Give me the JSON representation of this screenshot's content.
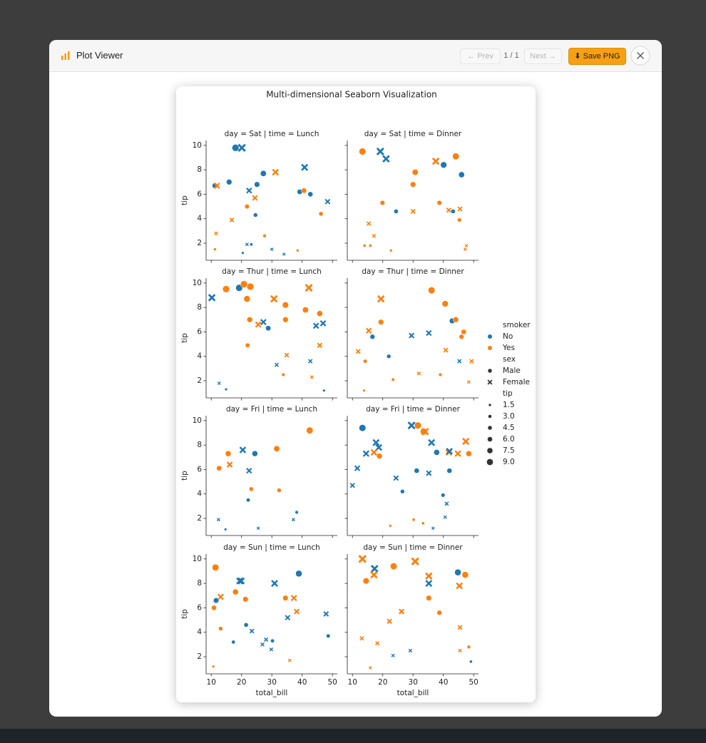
{
  "ui": {
    "app_title": "Plot Viewer",
    "prev": "← Prev",
    "page": "1 / 1",
    "next": "Next →",
    "save": "⬇ Save PNG"
  },
  "figure": {
    "title": "Multi-dimensional Seaborn Visualization",
    "legend": {
      "hue_title": "smoker",
      "hue": [
        {
          "name": "No",
          "color": "#1f77b4"
        },
        {
          "name": "Yes",
          "color": "#ff7f0e"
        }
      ],
      "style_title": "sex",
      "style": [
        {
          "name": "Male",
          "marker": "o"
        },
        {
          "name": "Female",
          "marker": "x"
        }
      ],
      "size_title": "tip",
      "sizes": [
        1.5,
        {
          "value": 3,
          "label": "3.0"
        },
        4.5,
        {
          "value": 6,
          "label": "6.0"
        },
        7.5,
        {
          "value": 9,
          "label": "9.0"
        }
      ]
    }
  },
  "chart_data": [
    {
      "type": "scatter",
      "title": "day = Sat | time = Lunch",
      "ylabel": "tip",
      "xlim": [
        8.3,
        51.6
      ],
      "ylim": [
        0.6,
        10.4
      ],
      "xticks": [
        10,
        20,
        30,
        40,
        50
      ],
      "yticks": [
        2,
        4,
        6,
        8,
        10
      ],
      "x": [
        11.2,
        11.9,
        15.9,
        18.0,
        20.1,
        27.2,
        25.1,
        22.5,
        31.2,
        40.8,
        39.2,
        40.6,
        42.7,
        48.4,
        24.4,
        21.8,
        24.6,
        16.8,
        46.2,
        11.6,
        27.6,
        21.8,
        23.2,
        11.2,
        30.0,
        20.4,
        34.0,
        38.5
      ],
      "values": [
        6.7,
        6.7,
        7.0,
        9.8,
        9.8,
        7.7,
        6.8,
        6.3,
        7.8,
        8.2,
        6.2,
        6.3,
        6.0,
        5.4,
        5.7,
        5.0,
        4.3,
        3.9,
        4.4,
        2.8,
        2.6,
        1.9,
        1.9,
        1.5,
        1.5,
        1.2,
        1.1,
        1.4
      ],
      "smoker": [
        "No",
        "Yes",
        "No",
        "No",
        "No",
        "No",
        "No",
        "No",
        "Yes",
        "No",
        "No",
        "Yes",
        "No",
        "No",
        "Yes",
        "Yes",
        "No",
        "Yes",
        "Yes",
        "Yes",
        "Yes",
        "No",
        "No",
        "Yes",
        "No",
        "No",
        "No",
        "Yes"
      ],
      "sex": [
        "Male",
        "Female",
        "Male",
        "Male",
        "Female",
        "Male",
        "Male",
        "Female",
        "Female",
        "Female",
        "Male",
        "Male",
        "Male",
        "Female",
        "Female",
        "Male",
        "Male",
        "Female",
        "Male",
        "Female",
        "Male",
        "Female",
        "Male",
        "Male",
        "Female",
        "Male",
        "Female",
        "Male"
      ]
    },
    {
      "type": "scatter",
      "title": "day = Sat | time = Dinner",
      "xlim": [
        8.3,
        51.6
      ],
      "ylim": [
        0.6,
        10.4
      ],
      "xticks": [
        10,
        20,
        30,
        40,
        50
      ],
      "yticks": [
        2,
        4,
        6,
        8,
        10
      ],
      "x": [
        13.3,
        19.2,
        21.1,
        37.5,
        44.1,
        40.1,
        46.0,
        30.7,
        30.0,
        19.9,
        24.4,
        30.0,
        38.7,
        41.8,
        43.2,
        45.5,
        45.3,
        15.4,
        17.1,
        14.0,
        15.9,
        22.7,
        47.6,
        47.2
      ],
      "values": [
        9.5,
        9.5,
        8.9,
        8.7,
        9.1,
        8.4,
        7.6,
        7.8,
        6.8,
        5.3,
        4.6,
        4.6,
        5.3,
        4.7,
        4.6,
        4.8,
        3.9,
        3.6,
        2.6,
        1.8,
        1.8,
        1.4,
        1.8,
        1.5
      ],
      "smoker": [
        "Yes",
        "No",
        "No",
        "Yes",
        "Yes",
        "No",
        "No",
        "Yes",
        "Yes",
        "Yes",
        "No",
        "Yes",
        "Yes",
        "Yes",
        "No",
        "Yes",
        "Yes",
        "Yes",
        "Yes",
        "Yes",
        "Yes",
        "Yes",
        "Yes",
        "Yes"
      ],
      "sex": [
        "Male",
        "Female",
        "Female",
        "Female",
        "Male",
        "Male",
        "Male",
        "Male",
        "Male",
        "Male",
        "Male",
        "Female",
        "Male",
        "Female",
        "Male",
        "Female",
        "Male",
        "Female",
        "Female",
        "Male",
        "Male",
        "Male",
        "Female",
        "Female"
      ]
    },
    {
      "type": "scatter",
      "title": "day = Thur | time = Lunch",
      "ylabel": "tip",
      "xlim": [
        8.3,
        51.6
      ],
      "ylim": [
        0.6,
        10.4
      ],
      "xticks": [
        10,
        20,
        30,
        40,
        50
      ],
      "yticks": [
        2,
        4,
        6,
        8,
        10
      ],
      "x": [
        10.2,
        14.9,
        19.2,
        20.8,
        22.9,
        21.8,
        30.7,
        42.2,
        34.5,
        41.1,
        45.8,
        22.7,
        27.2,
        34.5,
        25.5,
        28.8,
        44.6,
        46.9,
        22.0,
        45.8,
        34.9,
        42.7,
        31.6,
        33.8,
        43.2,
        12.6,
        14.9,
        47.2
      ],
      "values": [
        8.8,
        9.5,
        9.6,
        9.9,
        9.7,
        8.7,
        8.7,
        9.6,
        8.2,
        7.8,
        7.5,
        7.0,
        6.8,
        7.0,
        6.6,
        6.3,
        6.5,
        6.7,
        4.9,
        4.9,
        4.1,
        3.6,
        3.3,
        2.5,
        2.3,
        1.8,
        1.3,
        1.2
      ],
      "smoker": [
        "No",
        "Yes",
        "No",
        "Yes",
        "Yes",
        "Yes",
        "Yes",
        "Yes",
        "Yes",
        "Yes",
        "Yes",
        "Yes",
        "No",
        "Yes",
        "Yes",
        "No",
        "No",
        "No",
        "Yes",
        "Yes",
        "Yes",
        "No",
        "No",
        "Yes",
        "Yes",
        "No",
        "No",
        "No"
      ],
      "sex": [
        "Female",
        "Male",
        "Male",
        "Male",
        "Male",
        "Male",
        "Female",
        "Female",
        "Male",
        "Male",
        "Male",
        "Male",
        "Female",
        "Male",
        "Female",
        "Male",
        "Female",
        "Female",
        "Male",
        "Female",
        "Female",
        "Female",
        "Female",
        "Male",
        "Female",
        "Female",
        "Male",
        "Male"
      ]
    },
    {
      "type": "scatter",
      "title": "day = Thur | time = Dinner",
      "xlim": [
        8.3,
        51.6
      ],
      "ylim": [
        0.6,
        10.4
      ],
      "xticks": [
        10,
        20,
        30,
        40,
        50
      ],
      "yticks": [
        2,
        4,
        6,
        8,
        10
      ],
      "x": [
        19.4,
        36.1,
        40.6,
        19.4,
        42.9,
        44.1,
        46.7,
        46.0,
        15.4,
        16.6,
        29.5,
        35.2,
        11.9,
        40.8,
        14.2,
        22.0,
        45.3,
        49.3,
        31.9,
        39.0,
        23.4,
        48.4,
        13.8
      ],
      "values": [
        8.7,
        9.4,
        8.3,
        6.8,
        6.9,
        7.0,
        6.0,
        5.6,
        6.1,
        5.6,
        5.7,
        5.9,
        4.4,
        4.5,
        3.6,
        4.0,
        3.6,
        3.6,
        2.6,
        2.5,
        2.1,
        1.9,
        1.2
      ],
      "smoker": [
        "Yes",
        "Yes",
        "Yes",
        "Yes",
        "No",
        "Yes",
        "Yes",
        "Yes",
        "Yes",
        "No",
        "No",
        "No",
        "Yes",
        "Yes",
        "Yes",
        "No",
        "No",
        "Yes",
        "Yes",
        "Yes",
        "Yes",
        "Yes",
        "Yes"
      ],
      "sex": [
        "Female",
        "Male",
        "Male",
        "Male",
        "Male",
        "Male",
        "Male",
        "Male",
        "Female",
        "Male",
        "Female",
        "Female",
        "Female",
        "Female",
        "Male",
        "Male",
        "Female",
        "Female",
        "Female",
        "Male",
        "Male",
        "Female",
        "Male"
      ]
    },
    {
      "type": "scatter",
      "title": "day = Fri | time = Lunch",
      "ylabel": "tip",
      "xlim": [
        8.3,
        51.6
      ],
      "ylim": [
        0.6,
        10.4
      ],
      "xticks": [
        10,
        20,
        30,
        40,
        50
      ],
      "yticks": [
        2,
        4,
        6,
        8,
        10
      ],
      "x": [
        42.5,
        20.4,
        24.4,
        31.6,
        15.6,
        16.1,
        12.6,
        22.5,
        23.2,
        32.4,
        22.2,
        38.2,
        37.1,
        12.4,
        14.7,
        25.5
      ],
      "values": [
        9.2,
        7.6,
        7.3,
        7.7,
        7.3,
        6.4,
        6.1,
        5.9,
        4.4,
        4.3,
        3.5,
        2.5,
        1.9,
        1.9,
        1.1,
        1.2
      ],
      "smoker": [
        "Yes",
        "No",
        "No",
        "Yes",
        "Yes",
        "Yes",
        "Yes",
        "No",
        "Yes",
        "Yes",
        "No",
        "No",
        "No",
        "No",
        "No",
        "No"
      ],
      "sex": [
        "Male",
        "Female",
        "Male",
        "Male",
        "Male",
        "Female",
        "Male",
        "Female",
        "Male",
        "Male",
        "Male",
        "Male",
        "Female",
        "Female",
        "Male",
        "Female"
      ]
    },
    {
      "type": "scatter",
      "title": "day = Fri | time = Dinner",
      "xlim": [
        8.3,
        51.6
      ],
      "ylim": [
        0.6,
        10.4
      ],
      "xticks": [
        10,
        20,
        30,
        40,
        50
      ],
      "yticks": [
        2,
        4,
        6,
        8,
        10
      ],
      "x": [
        13.3,
        29.5,
        31.6,
        33.5,
        34.0,
        17.8,
        18.7,
        36.1,
        47.4,
        14.5,
        17.1,
        18.9,
        37.8,
        41.8,
        42.0,
        44.8,
        48.4,
        11.6,
        31.2,
        42.0,
        35.2,
        24.4,
        10.0,
        26.5,
        39.9,
        41.1,
        40.6,
        30.2,
        33.3,
        22.5,
        36.6
      ],
      "values": [
        9.4,
        9.6,
        9.6,
        9.1,
        9.1,
        8.2,
        7.8,
        8.2,
        8.3,
        7.3,
        7.4,
        7.1,
        7.4,
        7.4,
        7.5,
        7.3,
        7.3,
        6.1,
        5.9,
        5.9,
        5.7,
        5.3,
        4.7,
        4.2,
        3.9,
        3.2,
        2.1,
        1.9,
        1.6,
        1.4,
        1.2
      ],
      "smoker": [
        "No",
        "No",
        "Yes",
        "Yes",
        "Yes",
        "No",
        "No",
        "No",
        "Yes",
        "No",
        "Yes",
        "Yes",
        "No",
        "Yes",
        "No",
        "Yes",
        "Yes",
        "No",
        "No",
        "No",
        "No",
        "No",
        "No",
        "No",
        "No",
        "No",
        "No",
        "Yes",
        "Yes",
        "Yes",
        "No"
      ],
      "sex": [
        "Male",
        "Female",
        "Male",
        "Male",
        "Female",
        "Female",
        "Female",
        "Female",
        "Female",
        "Female",
        "Female",
        "Male",
        "Male",
        "Female",
        "Female",
        "Female",
        "Male",
        "Female",
        "Male",
        "Male",
        "Female",
        "Female",
        "Female",
        "Male",
        "Male",
        "Female",
        "Female",
        "Male",
        "Male",
        "Male",
        "Female"
      ]
    },
    {
      "type": "scatter",
      "title": "day = Sun | time = Lunch",
      "xlabel": "total_bill",
      "ylabel": "tip",
      "xlim": [
        8.3,
        51.6
      ],
      "ylim": [
        0.6,
        10.4
      ],
      "xticks": [
        10,
        20,
        30,
        40,
        50
      ],
      "yticks": [
        2,
        4,
        6,
        8,
        10
      ],
      "x": [
        11.4,
        19.4,
        19.9,
        38.9,
        30.9,
        18.0,
        13.1,
        11.6,
        21.3,
        34.5,
        37.3,
        10.9,
        38.2,
        47.9,
        35.2,
        21.5,
        13.1,
        23.4,
        48.6,
        17.3,
        28.1,
        30.2,
        26.9,
        29.8,
        35.9,
        10.7
      ],
      "values": [
        9.3,
        8.2,
        8.2,
        8.8,
        8.0,
        7.3,
        6.9,
        6.6,
        6.7,
        6.8,
        6.8,
        6.0,
        5.7,
        5.5,
        5.2,
        4.6,
        4.3,
        4.1,
        3.7,
        3.2,
        3.4,
        3.3,
        3.0,
        2.6,
        1.7,
        1.2
      ],
      "smoker": [
        "Yes",
        "No",
        "No",
        "No",
        "No",
        "Yes",
        "Yes",
        "No",
        "Yes",
        "Yes",
        "Yes",
        "Yes",
        "Yes",
        "No",
        "No",
        "No",
        "Yes",
        "No",
        "No",
        "No",
        "No",
        "No",
        "No",
        "No",
        "Yes",
        "Yes"
      ],
      "sex": [
        "Male",
        "Female",
        "Female",
        "Male",
        "Female",
        "Male",
        "Female",
        "Male",
        "Male",
        "Male",
        "Female",
        "Male",
        "Female",
        "Female",
        "Female",
        "Male",
        "Male",
        "Female",
        "Male",
        "Male",
        "Female",
        "Male",
        "Female",
        "Female",
        "Female",
        "Male"
      ]
    },
    {
      "type": "scatter",
      "title": "day = Sun | time = Dinner",
      "xlabel": "total_bill",
      "xlim": [
        8.3,
        51.6
      ],
      "ylim": [
        0.6,
        10.4
      ],
      "xticks": [
        10,
        20,
        30,
        40,
        50
      ],
      "yticks": [
        2,
        4,
        6,
        8,
        10
      ],
      "x": [
        13.3,
        17.3,
        17.1,
        23.6,
        30.7,
        44.8,
        47.2,
        14.5,
        35.2,
        35.2,
        45.3,
        35.2,
        26.2,
        38.7,
        22.2,
        45.5,
        18.2,
        13.1,
        48.4,
        45.5,
        29.1,
        23.4,
        49.1,
        15.9
      ],
      "values": [
        10.0,
        9.2,
        8.7,
        9.4,
        9.8,
        8.9,
        8.7,
        8.2,
        8.6,
        8.0,
        7.8,
        6.8,
        5.7,
        5.6,
        4.9,
        4.4,
        3.1,
        3.5,
        2.8,
        2.5,
        2.5,
        2.1,
        1.6,
        1.1
      ],
      "smoker": [
        "Yes",
        "No",
        "Yes",
        "Yes",
        "Yes",
        "No",
        "Yes",
        "Yes",
        "Yes",
        "No",
        "Yes",
        "Yes",
        "Yes",
        "Yes",
        "Yes",
        "Yes",
        "Yes",
        "Yes",
        "Yes",
        "Yes",
        "No",
        "No",
        "No",
        "Yes"
      ],
      "sex": [
        "Female",
        "Female",
        "Female",
        "Male",
        "Female",
        "Male",
        "Male",
        "Male",
        "Female",
        "Female",
        "Female",
        "Male",
        "Female",
        "Male",
        "Female",
        "Female",
        "Female",
        "Female",
        "Male",
        "Female",
        "Female",
        "Female",
        "Male",
        "Female"
      ]
    }
  ]
}
